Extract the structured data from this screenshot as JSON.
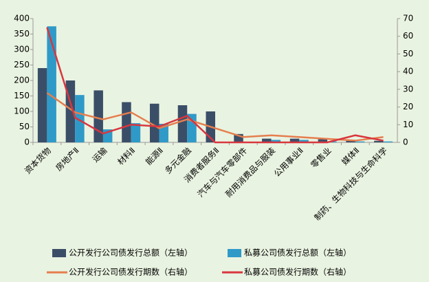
{
  "chart_data": {
    "type": "bar-line",
    "categories": [
      "资本货物",
      "房地产Ⅱ",
      "运输",
      "材料Ⅱ",
      "能源Ⅱ",
      "多元金融",
      "消费者服务Ⅱ",
      "汽车与汽车零部件",
      "耐用消费品与服装",
      "公用事业Ⅱ",
      "零售业",
      "媒体Ⅱ",
      "制药、生物科技与生命科学"
    ],
    "series": [
      {
        "name": "公开发行公司债发行总额（左轴）",
        "color": "#3b4e68",
        "kind": "bar",
        "axis": "y",
        "values": [
          240,
          200,
          168,
          130,
          125,
          120,
          100,
          27,
          12,
          12,
          10,
          5,
          5
        ]
      },
      {
        "name": "私募公司债发行总额（左轴）",
        "color": "#2f9ac8",
        "kind": "bar",
        "axis": "y",
        "values": [
          375,
          153,
          42,
          62,
          60,
          92,
          0,
          0,
          8,
          8,
          3,
          3,
          3
        ]
      },
      {
        "name": "公开发行公司债发行期数（右轴）",
        "color": "#e57e4e",
        "kind": "line",
        "axis": "y2",
        "values": [
          28,
          17,
          13,
          17,
          8,
          13,
          8,
          3,
          4,
          3,
          2,
          1,
          3
        ]
      },
      {
        "name": "私募公司债发行期数（右轴）",
        "color": "#d9363e",
        "kind": "line",
        "axis": "y2",
        "values": [
          65,
          14,
          5,
          10,
          9,
          15,
          0,
          0,
          0,
          0,
          0,
          4,
          1
        ]
      }
    ],
    "ylim": [
      0,
      400
    ],
    "yticks": [
      0,
      50,
      100,
      150,
      200,
      250,
      300,
      350,
      400
    ],
    "y2lim": [
      0,
      70
    ],
    "y2ticks": [
      0,
      10,
      20,
      30,
      40,
      50,
      60,
      70
    ],
    "grid": false
  }
}
